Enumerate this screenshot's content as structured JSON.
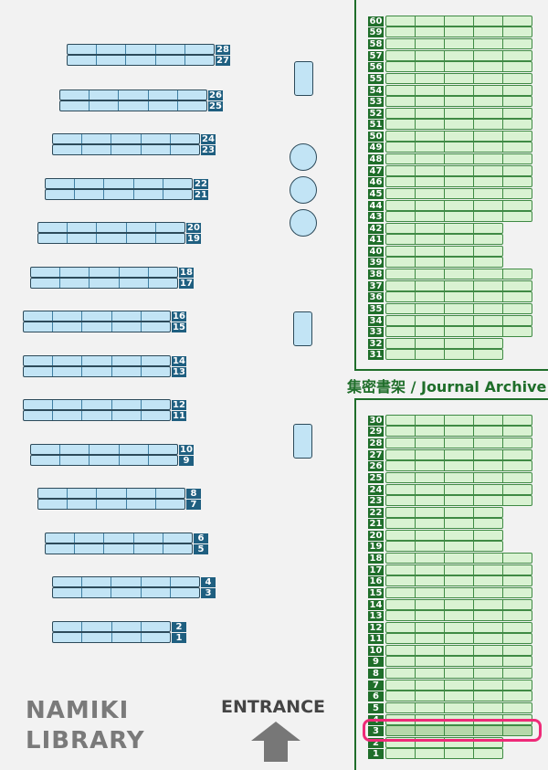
{
  "library_name_line1": "NAMIKI",
  "library_name_line2": "LIBRARY",
  "entrance_label": "ENTRANCE",
  "archive_label": "集密書架 / Journal Archive",
  "highlighted_shelf": "3",
  "colors": {
    "open_shelf": "#c2e4f5",
    "archive_shelf": "#d9f2d2",
    "highlight": "#ee2a78",
    "archive_border": "#1f6e2a"
  },
  "open_stacks": [
    {
      "upper": "28",
      "lower": "27",
      "segments": 5
    },
    {
      "upper": "26",
      "lower": "25",
      "segments": 5
    },
    {
      "upper": "24",
      "lower": "23",
      "segments": 5
    },
    {
      "upper": "22",
      "lower": "21",
      "segments": 5
    },
    {
      "upper": "20",
      "lower": "19",
      "segments": 5
    },
    {
      "upper": "18",
      "lower": "17",
      "segments": 5
    },
    {
      "upper": "16",
      "lower": "15",
      "segments": 5
    },
    {
      "upper": "14",
      "lower": "13",
      "segments": 5
    },
    {
      "upper": "12",
      "lower": "11",
      "segments": 5
    },
    {
      "upper": "10",
      "lower": "9",
      "segments": 5
    },
    {
      "upper": "8",
      "lower": "7",
      "segments": 5
    },
    {
      "upper": "6",
      "lower": "5",
      "segments": 5
    },
    {
      "upper": "4",
      "lower": "3",
      "segments": 5
    },
    {
      "upper": "2",
      "lower": "1",
      "segments": 4
    }
  ],
  "archive_upper": [
    {
      "upper": "60",
      "lower": "59",
      "segments": 5
    },
    {
      "upper": "58",
      "lower": "57",
      "segments": 5
    },
    {
      "upper": "56",
      "lower": "55",
      "segments": 5
    },
    {
      "upper": "54",
      "lower": "53",
      "segments": 5
    },
    {
      "upper": "52",
      "lower": "51",
      "segments": 5
    },
    {
      "upper": "50",
      "lower": "49",
      "segments": 5
    },
    {
      "upper": "48",
      "lower": "47",
      "segments": 5
    },
    {
      "upper": "46",
      "lower": "45",
      "segments": 5
    },
    {
      "upper": "44",
      "lower": "43",
      "segments": 5
    },
    {
      "upper": "42",
      "lower": "41",
      "segments": 4
    },
    {
      "upper": "40",
      "lower": "39",
      "segments": 4
    },
    {
      "upper": "38",
      "lower": "37",
      "segments": 5
    },
    {
      "upper": "36",
      "lower": "35",
      "segments": 5
    },
    {
      "upper": "34",
      "lower": "33",
      "segments": 5
    },
    {
      "upper": "32",
      "lower": "31",
      "segments": 4
    }
  ],
  "archive_lower": [
    {
      "upper": "30",
      "lower": "29",
      "segments": 5
    },
    {
      "upper": "28",
      "lower": "27",
      "segments": 5
    },
    {
      "upper": "26",
      "lower": "25",
      "segments": 5
    },
    {
      "upper": "24",
      "lower": "23",
      "segments": 5
    },
    {
      "upper": "22",
      "lower": "21",
      "segments": 4
    },
    {
      "upper": "20",
      "lower": "19",
      "segments": 4
    },
    {
      "upper": "18",
      "lower": "17",
      "segments": 5
    },
    {
      "upper": "16",
      "lower": "15",
      "segments": 5
    },
    {
      "upper": "14",
      "lower": "13",
      "segments": 5
    },
    {
      "upper": "12",
      "lower": "11",
      "segments": 5
    },
    {
      "upper": "10",
      "lower": "9",
      "segments": 5
    },
    {
      "upper": "8",
      "lower": "7",
      "segments": 5
    },
    {
      "upper": "6",
      "lower": "5",
      "segments": 5
    },
    {
      "upper": "4",
      "lower": "3",
      "segments": 5
    },
    {
      "upper": "2",
      "lower": "1",
      "segments": 4
    }
  ]
}
